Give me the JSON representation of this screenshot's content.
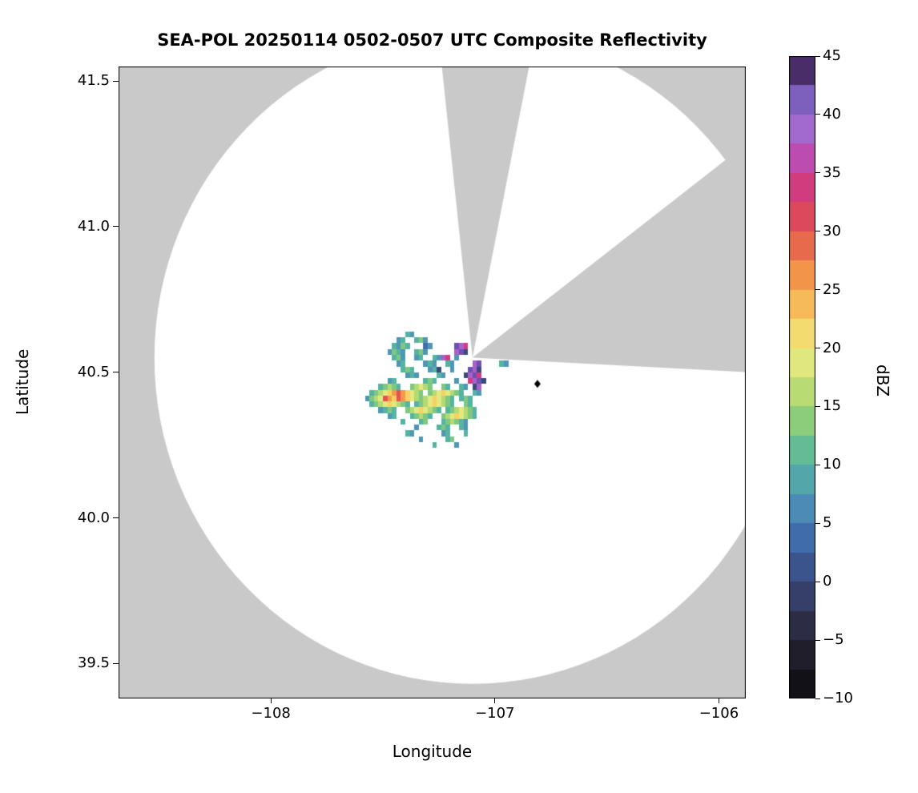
{
  "chart_data": {
    "type": "heatmap",
    "title": "SEA-POL 20250114 0502-0507 UTC Composite Reflectivity",
    "xlabel": "Longitude",
    "ylabel": "Latitude",
    "xlim": [
      -108.68,
      -105.88
    ],
    "ylim": [
      39.38,
      41.55
    ],
    "xticks": [
      {
        "value": -108,
        "label": "−108"
      },
      {
        "value": -107,
        "label": "−107"
      },
      {
        "value": -106,
        "label": "−106"
      }
    ],
    "yticks": [
      {
        "value": 39.5,
        "label": "39.5"
      },
      {
        "value": 40.0,
        "label": "40.0"
      },
      {
        "value": 40.5,
        "label": "40.5"
      },
      {
        "value": 41.0,
        "label": "41.0"
      },
      {
        "value": 41.5,
        "label": "41.5"
      }
    ],
    "outside_range_color": "#c9c9c9",
    "inside_range_color": "#ffffff",
    "radar": {
      "center_lon": -107.1,
      "center_lat": 40.55,
      "range_lon_deg": 1.42,
      "range_lat_deg": 1.12,
      "blocked_sectors_az_deg": [
        [
          -6,
          11
        ],
        [
          52,
          93
        ]
      ]
    },
    "site_marker": {
      "lon": -106.81,
      "lat": 40.46,
      "shape": "diamond",
      "color": "#000000"
    },
    "reflectivity_grid": {
      "lon0": -107.6,
      "lat0": 40.64,
      "dlon": 0.02,
      "dlat": 0.02,
      "ncols": 38,
      "nrows": 20,
      "char_dbz": {
        "n": 0,
        "a": 4,
        "b": 7,
        "c": 10,
        "d": 13,
        "e": 16,
        "f": 19,
        "g": 22,
        "h": 26,
        "i": 30,
        "j": 34,
        "k": 38,
        "l": 42
      },
      "rows": [
        "..........cb..........................",
        "........bc..cdb.......................",
        ".......cbdc...ab.....lkj..............",
        "......bdcb..cdb......kln..............",
        ".......cdb..bc..cbkj.b................",
        "........bc....bcb..cb....kl....cb.....",
        ".........cdc...bcn..b...lkn...........",
        "..........bcb....cb....nklj...........",
        "......bc......cdc....b..jkln..........",
        "....cdedc..defed..dc..cb.nk...........",
        "..cdefghihgfed.defgfedc..cb...........",
        ".bdefihgihgfedefgfedc.cdc.............",
        "..cdefgfedc.cdefgfedc..dc.............",
        "....bcdc..defgfedc.cdefedc............",
        "......bc...cdedc..defgfedc............",
        ".........c...cd...cdedcb..............",
        "............b....cdc..cb..............",
        "..........cb......bc...c..............",
        ".............b.....cd.................",
        "................c....b................"
      ]
    },
    "colorbar": {
      "label": "dBZ",
      "vmin": -10,
      "vmax": 45,
      "segment_dbz": 2.5,
      "ticks": [
        {
          "value": -10,
          "label": "−10"
        },
        {
          "value": -5,
          "label": "−5"
        },
        {
          "value": 0,
          "label": "0"
        },
        {
          "value": 5,
          "label": "5"
        },
        {
          "value": 10,
          "label": "10"
        },
        {
          "value": 15,
          "label": "15"
        },
        {
          "value": 20,
          "label": "20"
        },
        {
          "value": 25,
          "label": "25"
        },
        {
          "value": 30,
          "label": "30"
        },
        {
          "value": 35,
          "label": "35"
        },
        {
          "value": 40,
          "label": "40"
        },
        {
          "value": 45,
          "label": "45"
        }
      ]
    },
    "colormap_stops": [
      [
        -10,
        "#0a0a0e"
      ],
      [
        -7,
        "#1c1a24"
      ],
      [
        -4,
        "#2b2a41"
      ],
      [
        0,
        "#39497c"
      ],
      [
        3,
        "#3f64a5"
      ],
      [
        5,
        "#4579b6"
      ],
      [
        7,
        "#4f96b4"
      ],
      [
        10,
        "#55b3a2"
      ],
      [
        12,
        "#6cc28b"
      ],
      [
        15,
        "#a2d46f"
      ],
      [
        18,
        "#d6e57a"
      ],
      [
        20,
        "#f0ea85"
      ],
      [
        22,
        "#f6d264"
      ],
      [
        25,
        "#f6a84f"
      ],
      [
        27,
        "#f08a49"
      ],
      [
        30,
        "#e1534f"
      ],
      [
        33,
        "#d53a6f"
      ],
      [
        35,
        "#cb3e97"
      ],
      [
        37,
        "#b554c0"
      ],
      [
        40,
        "#9579d6"
      ],
      [
        42,
        "#6f4fb0"
      ],
      [
        45,
        "#2c1535"
      ]
    ]
  }
}
